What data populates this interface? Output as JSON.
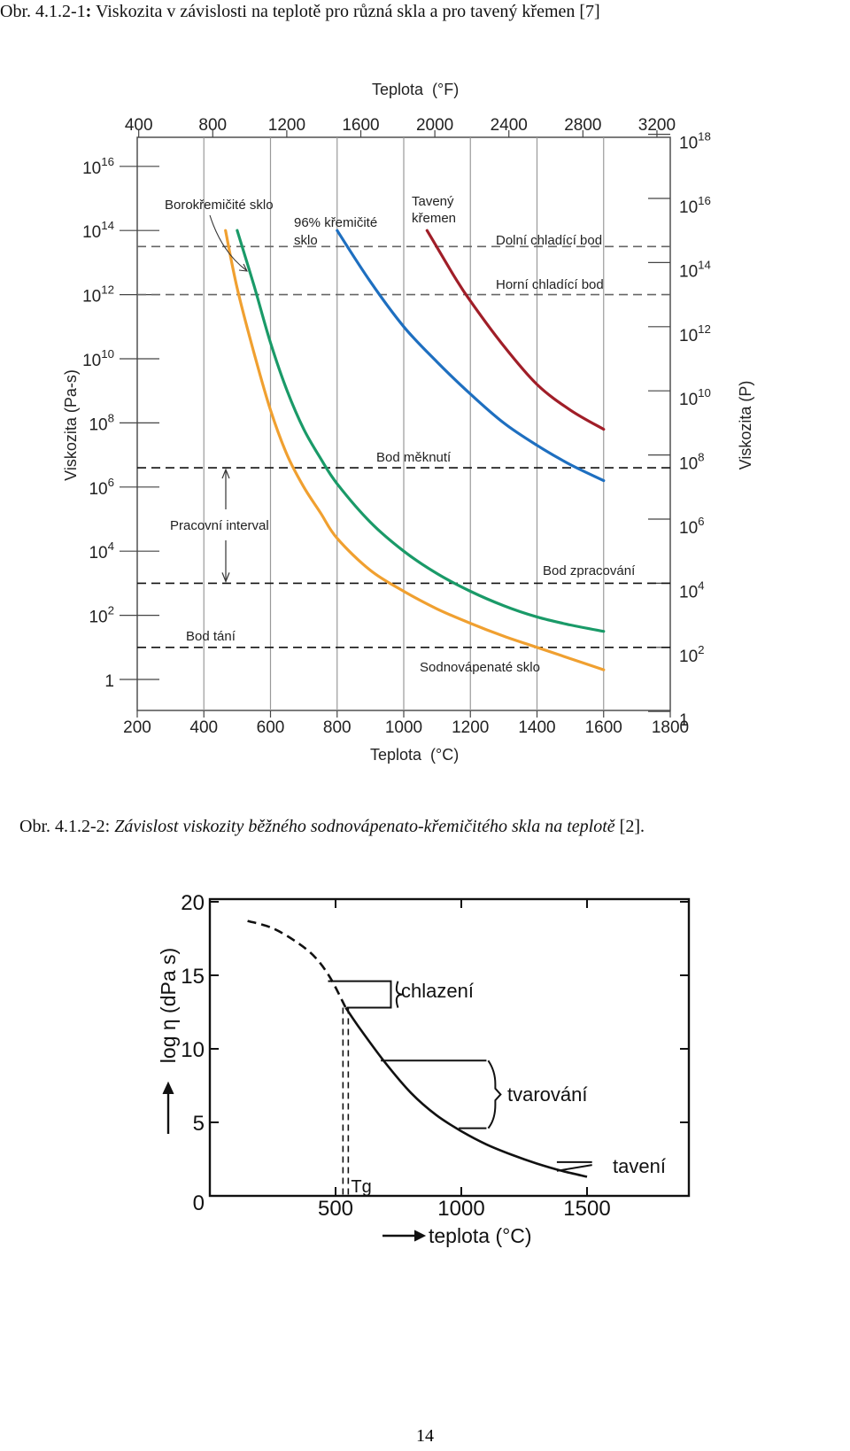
{
  "captions": {
    "fig1_prefix": "Obr. 4.1.2-1",
    "fig1_sep": ":",
    "fig1_text": " Viskozita v závislosti na teplotě pro různá skla a pro tavený křemen [7]",
    "fig2_prefix": "Obr. 4.1.2-2: ",
    "fig2_text": "Závislost viskozity běžného sodnovápenato-křemičitého skla na teplotě",
    "fig2_suffix": " [2]."
  },
  "page_number": "14",
  "chart_data": [
    {
      "type": "line",
      "top_axis_title": "Teplota",
      "top_axis_unit": "(°F)",
      "xlabel": "Teplota",
      "xlabel_unit": "(°C)",
      "ylabel": "Viskozita (Pa-s)",
      "ylabel_right": "Viskozita (P)",
      "xlim": [
        200,
        1800
      ],
      "ylim_log10": [
        -0.5,
        17
      ],
      "x_ticks": [
        "200",
        "400",
        "600",
        "800",
        "1000",
        "1200",
        "1400",
        "1600",
        "1800"
      ],
      "x_ticks_values": [
        200,
        400,
        600,
        800,
        1000,
        1200,
        1400,
        1600,
        1800
      ],
      "top_ticks": [
        "400",
        "800",
        "1200",
        "1600",
        "2000",
        "2400",
        "2800",
        "3200"
      ],
      "top_ticks_values_F": [
        400,
        800,
        1200,
        1600,
        2000,
        2400,
        2800,
        3200
      ],
      "y_ticks_left": [
        {
          "base": "1",
          "exp": ""
        },
        {
          "base": "10",
          "exp": "2"
        },
        {
          "base": "10",
          "exp": "4"
        },
        {
          "base": "10",
          "exp": "6"
        },
        {
          "base": "10",
          "exp": "8"
        },
        {
          "base": "10",
          "exp": "10"
        },
        {
          "base": "10",
          "exp": "12"
        },
        {
          "base": "10",
          "exp": "14"
        },
        {
          "base": "10",
          "exp": "16"
        }
      ],
      "y_ticks_left_log": [
        0,
        2,
        4,
        6,
        8,
        10,
        12,
        14,
        16
      ],
      "y_ticks_right": [
        {
          "base": "1",
          "exp": ""
        },
        {
          "base": "10",
          "exp": "2"
        },
        {
          "base": "10",
          "exp": "4"
        },
        {
          "base": "10",
          "exp": "6"
        },
        {
          "base": "10",
          "exp": "8"
        },
        {
          "base": "10",
          "exp": "10"
        },
        {
          "base": "10",
          "exp": "12"
        },
        {
          "base": "10",
          "exp": "14"
        },
        {
          "base": "10",
          "exp": "16"
        },
        {
          "base": "10",
          "exp": "18"
        }
      ],
      "y_ticks_right_log_P": [
        0,
        2,
        4,
        6,
        8,
        10,
        12,
        14,
        16,
        18
      ],
      "reference_lines": [
        {
          "name": "Dolní chladící bod",
          "log_visc": 13.5
        },
        {
          "name": "Horní chladící bod",
          "log_visc": 12
        },
        {
          "name": "Bod měknutí",
          "log_visc": 6.6
        },
        {
          "name": "Bod zpracování",
          "log_visc": 3
        },
        {
          "name": "Bod tání",
          "log_visc": 1
        }
      ],
      "reference_labels": [
        "Dolní chladící bod",
        "Horní chladící bod",
        "Bod měknutí",
        "Bod zpracování",
        "Bod tání"
      ],
      "annotations": {
        "working_range": "Pracovní interval",
        "borosilicate": "Borokřemičité sklo",
        "silica96_line1": "96% křemičité",
        "silica96_line2": "sklo",
        "fused_line1": "Tavený",
        "fused_line2": "křemen",
        "sodalime": "Sodnovápenaté sklo"
      },
      "series": [
        {
          "name": "Sodnovápenaté sklo",
          "color": "#f0a030",
          "x": [
            465,
            500,
            550,
            600,
            650,
            700,
            750,
            800,
            900,
            1000,
            1100,
            1200,
            1300,
            1400,
            1500,
            1600
          ],
          "y": [
            14,
            12.2,
            10.2,
            8.4,
            7.0,
            6.0,
            5.2,
            4.4,
            3.4,
            2.75,
            2.2,
            1.75,
            1.35,
            1.0,
            0.65,
            0.3
          ]
        },
        {
          "name": "Borokřemičité sklo",
          "color": "#1a9a68",
          "x": [
            500,
            550,
            600,
            650,
            700,
            750,
            800,
            900,
            1000,
            1100,
            1200,
            1300,
            1400,
            1500,
            1600
          ],
          "y": [
            14,
            12.3,
            10.5,
            9.0,
            7.8,
            6.9,
            6.1,
            4.9,
            4.0,
            3.3,
            2.75,
            2.3,
            1.95,
            1.7,
            1.5
          ]
        },
        {
          "name": "96% křemičité sklo",
          "color": "#1e6fc0",
          "x": [
            800,
            900,
            1000,
            1100,
            1200,
            1300,
            1400,
            1500,
            1600
          ],
          "y": [
            14,
            12.4,
            11.0,
            9.9,
            8.9,
            8.0,
            7.3,
            6.7,
            6.2
          ]
        },
        {
          "name": "Tavený křemen",
          "color": "#a01e28",
          "x": [
            1070,
            1150,
            1200,
            1300,
            1400,
            1500,
            1600
          ],
          "y": [
            14,
            12.6,
            11.8,
            10.4,
            9.2,
            8.4,
            7.8
          ]
        }
      ]
    },
    {
      "type": "line",
      "xlabel": "teplota (°C)",
      "ylabel": "log η (dPa s)",
      "xlim": [
        0,
        1900
      ],
      "ylim": [
        0,
        20
      ],
      "x_ticks": [
        "0",
        "500",
        "1000",
        "1500"
      ],
      "x_ticks_values": [
        0,
        500,
        1000,
        1500
      ],
      "y_ticks": [
        "5",
        "10",
        "15",
        "20"
      ],
      "y_ticks_values": [
        5,
        10,
        15,
        20
      ],
      "zero_label": "0",
      "tg_label": "Tg",
      "tg_value": 540,
      "range_labels": [
        "chlazení",
        "tvarování",
        "tavení"
      ],
      "series": [
        {
          "name": "dashed",
          "style": "dashed",
          "x": [
            150,
            250,
            350,
            420,
            480,
            540
          ],
          "y": [
            18.7,
            18.2,
            17.2,
            16.2,
            14.8,
            12.8
          ]
        },
        {
          "name": "solid",
          "style": "solid",
          "x": [
            540,
            600,
            700,
            800,
            900,
            1000,
            1100,
            1200,
            1300,
            1400,
            1500
          ],
          "y": [
            12.8,
            11.3,
            9.0,
            7.0,
            5.5,
            4.4,
            3.5,
            2.8,
            2.2,
            1.7,
            1.3
          ]
        }
      ]
    }
  ]
}
